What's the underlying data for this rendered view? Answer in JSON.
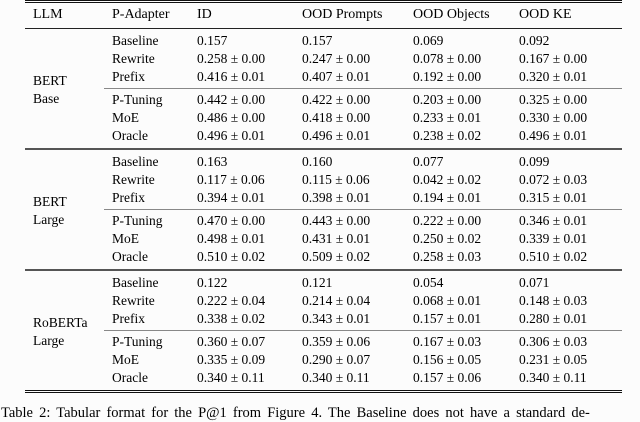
{
  "table": {
    "columns": [
      "LLM",
      "P-Adapter",
      "ID",
      "OOD Prompts",
      "OOD Objects",
      "OOD KE"
    ],
    "groups": [
      {
        "llm_lines": [
          "BERT",
          "Base"
        ],
        "rows": [
          {
            "adapter": "Baseline",
            "values": [
              "0.157",
              "0.157",
              "0.069",
              "0.092"
            ]
          },
          {
            "adapter": "Rewrite",
            "values": [
              "0.258 ± 0.00",
              "0.247 ± 0.00",
              "0.078 ± 0.00",
              "0.167 ± 0.00"
            ]
          },
          {
            "adapter": "Prefix",
            "values": [
              "0.416 ± 0.01",
              "0.407 ± 0.01",
              "0.192 ± 0.00",
              "0.320 ± 0.01"
            ]
          },
          {
            "adapter": "P-Tuning",
            "values": [
              "0.442 ± 0.00",
              "0.422 ± 0.00",
              "0.203 ± 0.00",
              "0.325 ± 0.00"
            ]
          },
          {
            "adapter": "MoE",
            "values": [
              "0.486 ± 0.00",
              "0.418 ± 0.00",
              "0.233 ± 0.01",
              "0.330 ± 0.00"
            ]
          },
          {
            "adapter": "Oracle",
            "values": [
              "0.496 ± 0.01",
              "0.496 ± 0.01",
              "0.238 ± 0.02",
              "0.496 ± 0.01"
            ]
          }
        ]
      },
      {
        "llm_lines": [
          "BERT",
          "Large"
        ],
        "rows": [
          {
            "adapter": "Baseline",
            "values": [
              "0.163",
              "0.160",
              "0.077",
              "0.099"
            ]
          },
          {
            "adapter": "Rewrite",
            "values": [
              "0.117 ± 0.06",
              "0.115 ± 0.06",
              "0.042 ± 0.02",
              "0.072 ± 0.03"
            ]
          },
          {
            "adapter": "Prefix",
            "values": [
              "0.394 ± 0.01",
              "0.398 ± 0.01",
              "0.194 ± 0.01",
              "0.315 ± 0.01"
            ]
          },
          {
            "adapter": "P-Tuning",
            "values": [
              "0.470 ± 0.00",
              "0.443 ± 0.00",
              "0.222 ± 0.00",
              "0.346 ± 0.01"
            ]
          },
          {
            "adapter": "MoE",
            "values": [
              "0.498 ± 0.01",
              "0.431 ± 0.01",
              "0.250 ± 0.02",
              "0.339 ± 0.01"
            ]
          },
          {
            "adapter": "Oracle",
            "values": [
              "0.510 ± 0.02",
              "0.509 ± 0.02",
              "0.258 ± 0.03",
              "0.510 ± 0.02"
            ]
          }
        ]
      },
      {
        "llm_lines": [
          "RoBERTa",
          "Large"
        ],
        "rows": [
          {
            "adapter": "Baseline",
            "values": [
              "0.122",
              "0.121",
              "0.054",
              "0.071"
            ]
          },
          {
            "adapter": "Rewrite",
            "values": [
              "0.222 ± 0.04",
              "0.214 ± 0.04",
              "0.068 ± 0.01",
              "0.148 ± 0.03"
            ]
          },
          {
            "adapter": "Prefix",
            "values": [
              "0.338 ± 0.02",
              "0.343 ± 0.01",
              "0.157 ± 0.01",
              "0.280 ± 0.01"
            ]
          },
          {
            "adapter": "P-Tuning",
            "values": [
              "0.360 ± 0.07",
              "0.359 ± 0.06",
              "0.167 ± 0.03",
              "0.306 ± 0.03"
            ]
          },
          {
            "adapter": "MoE",
            "values": [
              "0.335 ± 0.09",
              "0.290 ± 0.07",
              "0.156 ± 0.05",
              "0.231 ± 0.05"
            ]
          },
          {
            "adapter": "Oracle",
            "values": [
              "0.340 ± 0.11",
              "0.340 ± 0.11",
              "0.157 ± 0.06",
              "0.340 ± 0.11"
            ]
          }
        ]
      }
    ]
  },
  "caption": "Table 2:  Tabular format for the P@1 from Figure 4.  The Baseline does not have a standard de-"
}
